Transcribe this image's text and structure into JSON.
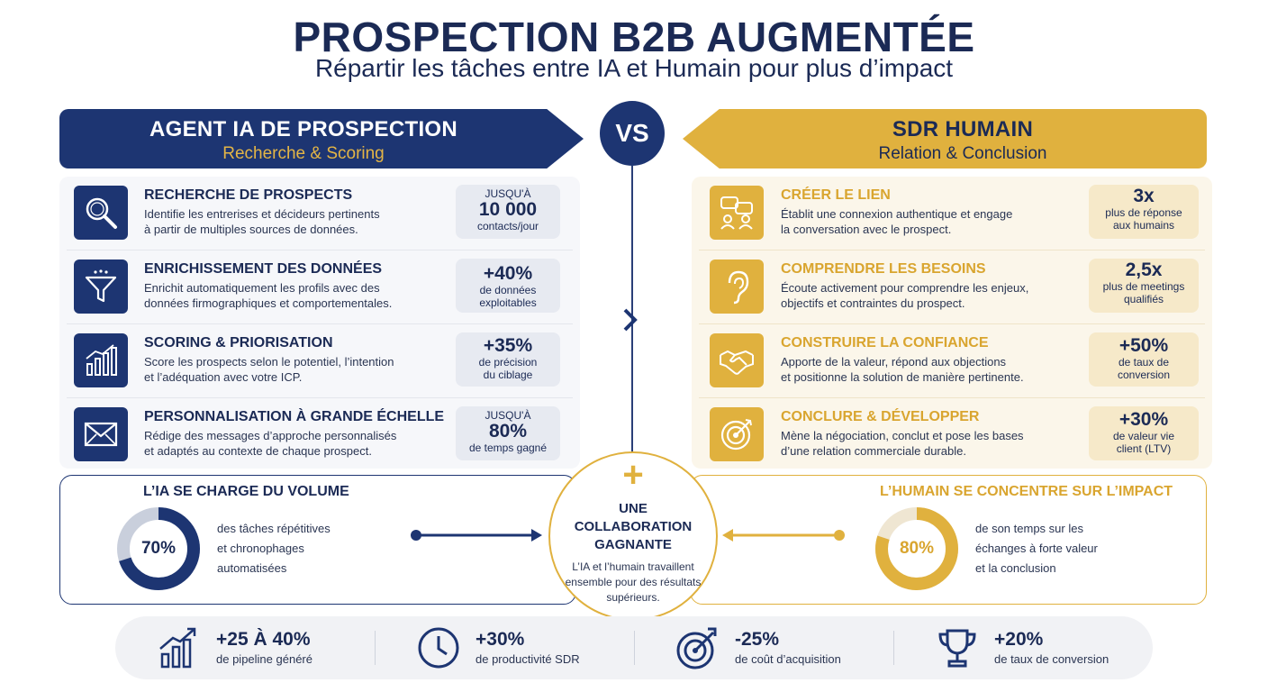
{
  "header": {
    "title": "PROSPECTION B2B AUGMENTÉE",
    "subtitle": "Répartir les tâches entre IA et Humain pour plus d’impact"
  },
  "vs_label": "VS",
  "ia": {
    "banner_title": "AGENT IA DE PROSPECTION",
    "banner_subtitle": "Recherche & Scoring",
    "rows": [
      {
        "icon": "magnifier-icon",
        "title": "RECHERCHE DE PROSPECTS",
        "desc1": "Identifie les entrerises et décideurs pertinents",
        "desc2": "à partir de multiples sources de données.",
        "stat_small": "JUSQU'À",
        "stat_big": "10 000",
        "stat_label": "contacts/jour"
      },
      {
        "icon": "funnel-icon",
        "title": "ENRICHISSEMENT DES DONNÉES",
        "desc1": "Enrichit automatiquement les profils avec des",
        "desc2": "données firmographiques et comportementales.",
        "stat_small": "",
        "stat_big": "+40%",
        "stat_label": "de données exploitables"
      },
      {
        "icon": "bar-chart-icon",
        "title": "SCORING & PRIORISATION",
        "desc1": "Score les prospects selon le potentiel, l’intention",
        "desc2": "et l’adéquation avec votre ICP.",
        "stat_small": "",
        "stat_big": "+35%",
        "stat_label": "de précision du ciblage"
      },
      {
        "icon": "envelope-icon",
        "title": "PERSONNALISATION À GRANDE ÉCHELLE",
        "desc1": "Rédige des messages d’approche personnalisés",
        "desc2": "et adaptés au contexte de chaque prospect.",
        "stat_small": "JUSQU'À",
        "stat_big": "80%",
        "stat_label": "de temps gagné"
      }
    ],
    "band_title": "L’IA SE CHARGE DU VOLUME",
    "band_percent_label": "70%",
    "band_percent": 70,
    "band_text1": "des tâches répétitives",
    "band_text2": "et chronophages",
    "band_text3": "automatisées"
  },
  "human": {
    "banner_title": "SDR HUMAIN",
    "banner_subtitle": "Relation & Conclusion",
    "rows": [
      {
        "icon": "conversation-icon",
        "title": "CRÉER LE LIEN",
        "desc1": "Établit une connexion authentique et engage",
        "desc2": "la conversation avec le prospect.",
        "stat_big": "3x",
        "stat_label": "plus de réponse aux humains"
      },
      {
        "icon": "ear-icon",
        "title": "COMPRENDRE LES BESOINS",
        "desc1": "Écoute activement pour comprendre les enjeux,",
        "desc2": "objectifs et contraintes du prospect.",
        "stat_big": "2,5x",
        "stat_label": "plus de meetings qualifiés"
      },
      {
        "icon": "handshake-icon",
        "title": "CONSTRUIRE LA CONFIANCE",
        "desc1": "Apporte de la valeur, répond aux objections",
        "desc2": "et positionne la solution de manière pertinente.",
        "stat_big": "+50%",
        "stat_label": "de taux de conversion"
      },
      {
        "icon": "target-icon",
        "title": "CONCLURE & DÉVELOPPER",
        "desc1": "Mène la négociation, conclut et pose les bases",
        "desc2": "d’une relation commerciale durable.",
        "stat_big": "+30%",
        "stat_label": "de valeur vie client (LTV)"
      }
    ],
    "band_title": "L’HUMAIN SE CONCENTRE SUR L’IMPACT",
    "band_percent_label": "80%",
    "band_percent": 80,
    "band_text1": "de son temps sur les",
    "band_text2": "échanges à forte valeur",
    "band_text3": "et la conclusion"
  },
  "collab": {
    "plus": "+",
    "title": "UNE COLLABORATION GAGNANTE",
    "text": "L’IA et l’humain travaillent ensemble pour des résultats supérieurs."
  },
  "kpis": [
    {
      "icon": "growth-chart-icon",
      "value": "+25 À 40%",
      "label": "de pipeline généré"
    },
    {
      "icon": "clock-icon",
      "value": "+30%",
      "label": "de productivité SDR"
    },
    {
      "icon": "target-arrow-icon",
      "value": "-25%",
      "label": "de coût d’acquisition"
    },
    {
      "icon": "trophy-icon",
      "value": "+20%",
      "label": "de taux de conversion"
    }
  ],
  "colors": {
    "navy": "#1d3572",
    "gold": "#e0b13e"
  }
}
